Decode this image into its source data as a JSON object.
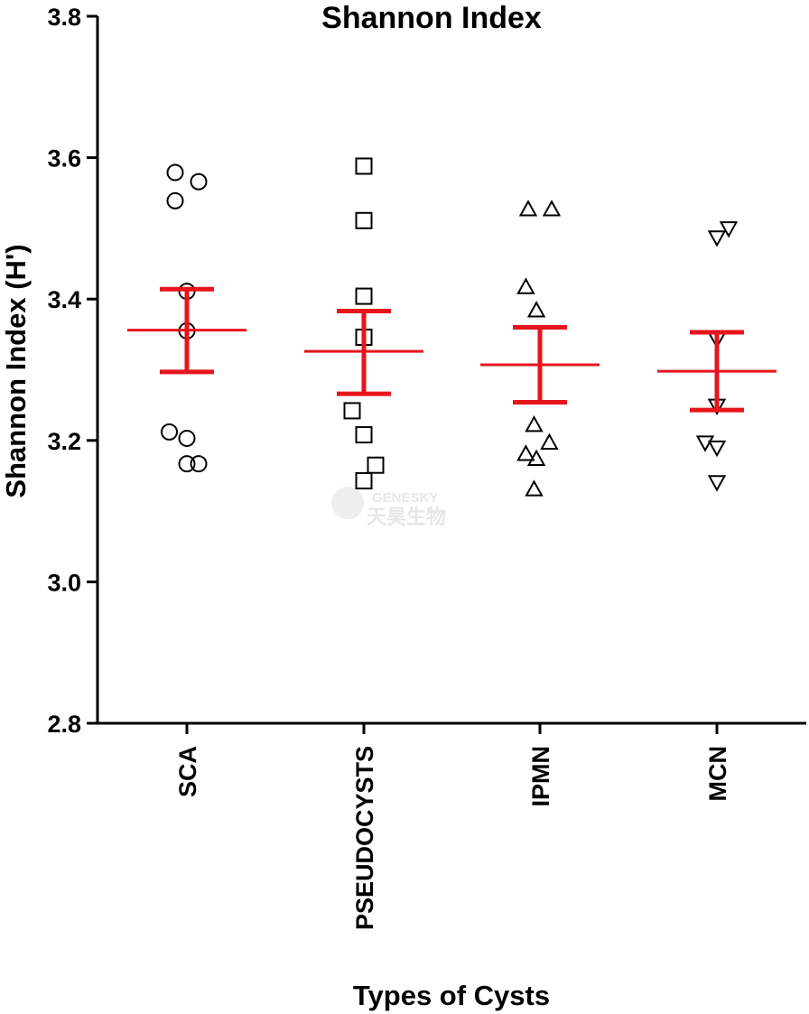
{
  "chart_data": {
    "type": "scatter",
    "title": "Shannon Index",
    "xlabel": "Types of Cysts",
    "ylabel": "Shannon Index (H')",
    "ylim": [
      2.8,
      3.8
    ],
    "yticks": [
      2.8,
      3.0,
      3.2,
      3.4,
      3.6,
      3.8
    ],
    "ytick_labels": [
      "2.8",
      "3.0",
      "3.2",
      "3.4",
      "3.6",
      "3.8"
    ],
    "grid": false,
    "categories": [
      "SCA",
      "PSEUDOCYSTS",
      "IPMN",
      "MCN"
    ],
    "series": [
      {
        "category": "SCA",
        "marker": "circle",
        "points": [
          {
            "offset": -1,
            "y": 3.579
          },
          {
            "offset": 1,
            "y": 3.566
          },
          {
            "offset": -1,
            "y": 3.539
          },
          {
            "offset": 0,
            "y": 3.411
          },
          {
            "offset": 0,
            "y": 3.355
          },
          {
            "offset": -1.5,
            "y": 3.212
          },
          {
            "offset": 0,
            "y": 3.203
          },
          {
            "offset": 0,
            "y": 3.167
          },
          {
            "offset": 1,
            "y": 3.167
          }
        ],
        "mean": 3.356,
        "sem_low": 3.297,
        "sem_high": 3.414
      },
      {
        "category": "PSEUDOCYSTS",
        "marker": "square",
        "points": [
          {
            "offset": 0,
            "y": 3.588
          },
          {
            "offset": 0,
            "y": 3.511
          },
          {
            "offset": 0,
            "y": 3.404
          },
          {
            "offset": 0,
            "y": 3.346
          },
          {
            "offset": -1,
            "y": 3.242
          },
          {
            "offset": 0,
            "y": 3.208
          },
          {
            "offset": 1,
            "y": 3.165
          },
          {
            "offset": 0,
            "y": 3.143
          }
        ],
        "mean": 3.326,
        "sem_low": 3.266,
        "sem_high": 3.383
      },
      {
        "category": "IPMN",
        "marker": "triangle-up",
        "points": [
          {
            "offset": -1,
            "y": 3.527
          },
          {
            "offset": 1,
            "y": 3.527
          },
          {
            "offset": -1.2,
            "y": 3.417
          },
          {
            "offset": -0.3,
            "y": 3.384
          },
          {
            "offset": -0.5,
            "y": 3.222
          },
          {
            "offset": 0.8,
            "y": 3.197
          },
          {
            "offset": -1.2,
            "y": 3.181
          },
          {
            "offset": -0.3,
            "y": 3.174
          },
          {
            "offset": -0.5,
            "y": 3.131
          }
        ],
        "mean": 3.307,
        "sem_low": 3.254,
        "sem_high": 3.36
      },
      {
        "category": "MCN",
        "marker": "triangle-down",
        "points": [
          {
            "offset": 0,
            "y": 3.487
          },
          {
            "offset": 1,
            "y": 3.5
          },
          {
            "offset": 0,
            "y": 3.343
          },
          {
            "offset": 0,
            "y": 3.249
          },
          {
            "offset": -1,
            "y": 3.197
          },
          {
            "offset": 0,
            "y": 3.19
          },
          {
            "offset": 0,
            "y": 3.141
          }
        ],
        "mean": 3.298,
        "sem_low": 3.243,
        "sem_high": 3.353
      }
    ],
    "colors": {
      "mean_sem": "#e8141c",
      "markers": "#000000",
      "axis": "#000000"
    },
    "watermark": {
      "line1": "GENESKY",
      "line2": "天昊生物"
    }
  }
}
